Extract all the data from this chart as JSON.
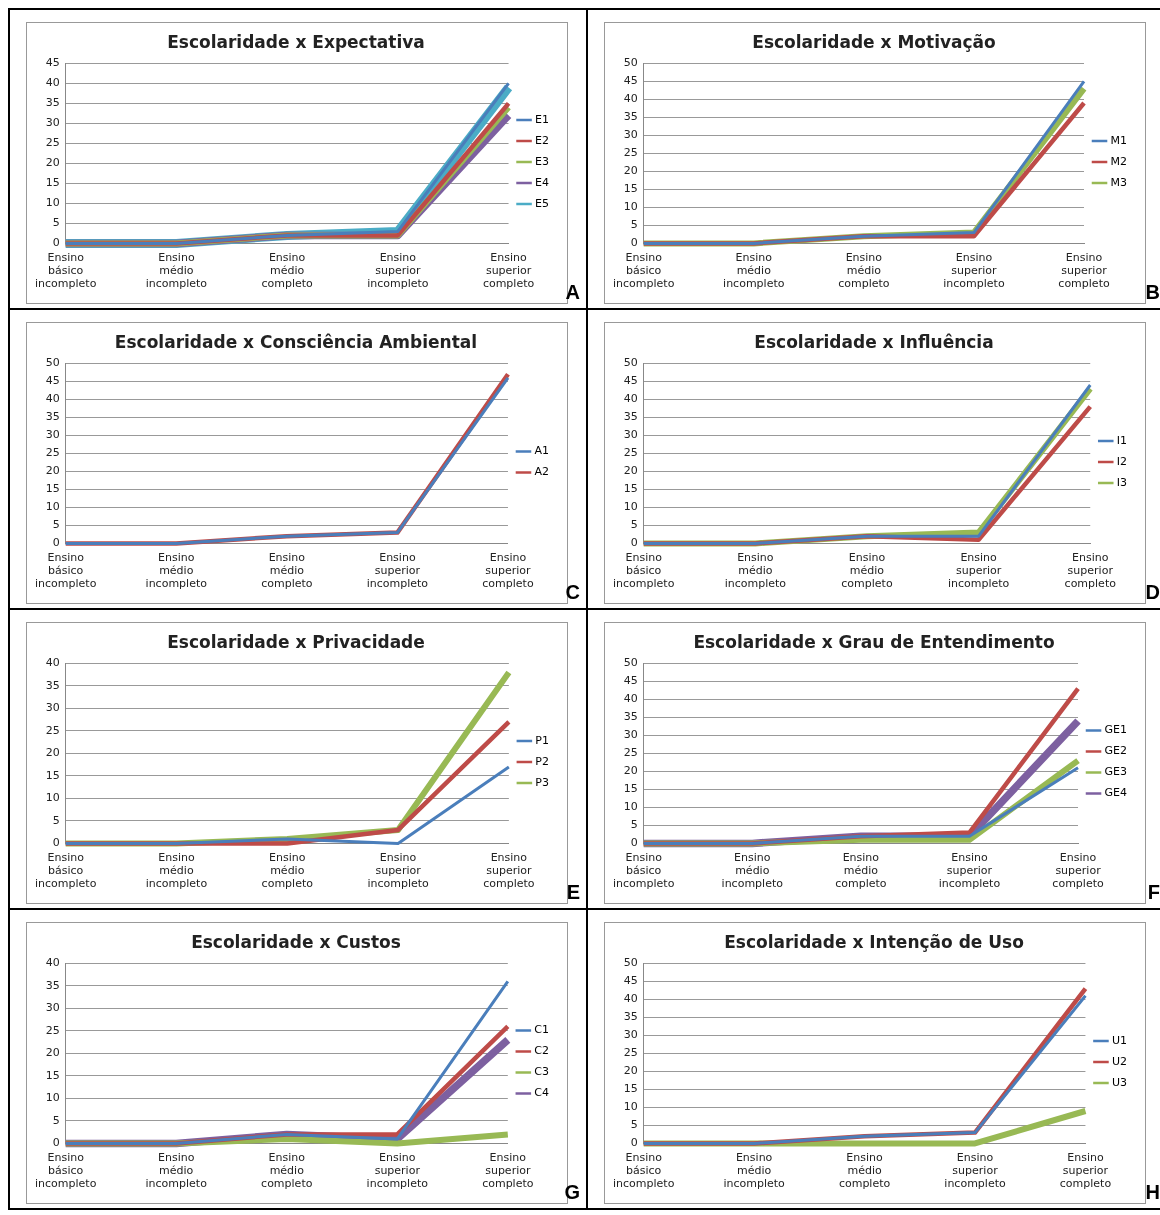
{
  "chart_data": [
    {
      "type": "line",
      "title": "Escolaridade x Expectativa",
      "categories": [
        "Ensino básico incompleto",
        "Ensino médio incompleto",
        "Ensino médio completo",
        "Ensino superior incompleto",
        "Ensino superior completo"
      ],
      "ylim": [
        0,
        45
      ],
      "yticks": [
        0,
        5,
        10,
        15,
        20,
        25,
        30,
        35,
        40,
        45
      ],
      "grid": "y",
      "legend": "right",
      "marker": "none",
      "annotations": [
        "A"
      ],
      "series": [
        {
          "name": "E1",
          "color": "#4a7ebb",
          "values": [
            0,
            0,
            2,
            3,
            40
          ]
        },
        {
          "name": "E2",
          "color": "#be4b48",
          "values": [
            0,
            0,
            2,
            2,
            35
          ]
        },
        {
          "name": "E3",
          "color": "#98b954",
          "values": [
            0,
            0,
            2,
            2,
            34
          ]
        },
        {
          "name": "E4",
          "color": "#7d60a0",
          "values": [
            0,
            0,
            2,
            2,
            32
          ]
        },
        {
          "name": "E5",
          "color": "#4bacc6",
          "values": [
            0,
            0,
            2,
            3,
            39
          ]
        }
      ]
    },
    {
      "type": "line",
      "title": "Escolaridade x Motivação",
      "categories": [
        "Ensino básico incompleto",
        "Ensino médio incompleto",
        "Ensino médio completo",
        "Ensino superior incompleto",
        "Ensino superior completo"
      ],
      "ylim": [
        0,
        50
      ],
      "yticks": [
        0,
        5,
        10,
        15,
        20,
        25,
        30,
        35,
        40,
        45,
        50
      ],
      "grid": "y",
      "legend": "right",
      "marker": "none",
      "annotations": [
        "B"
      ],
      "series": [
        {
          "name": "M1",
          "color": "#4a7ebb",
          "values": [
            0,
            0,
            2,
            3,
            45
          ]
        },
        {
          "name": "M2",
          "color": "#be4b48",
          "values": [
            0,
            0,
            2,
            2,
            39
          ]
        },
        {
          "name": "M3",
          "color": "#98b954",
          "values": [
            0,
            0,
            2,
            3,
            43
          ]
        }
      ]
    },
    {
      "type": "line",
      "title": "Escolaridade x Consciência Ambiental",
      "categories": [
        "Ensino básico incompleto",
        "Ensino médio incompleto",
        "Ensino médio completo",
        "Ensino superior incompleto",
        "Ensino superior completo"
      ],
      "ylim": [
        0,
        50
      ],
      "yticks": [
        0,
        5,
        10,
        15,
        20,
        25,
        30,
        35,
        40,
        45,
        50
      ],
      "grid": "y",
      "legend": "right",
      "marker": "none",
      "annotations": [
        "C"
      ],
      "series": [
        {
          "name": "A1",
          "color": "#4a7ebb",
          "values": [
            0,
            0,
            2,
            3,
            46
          ]
        },
        {
          "name": "A2",
          "color": "#be4b48",
          "values": [
            0,
            0,
            2,
            3,
            47
          ]
        }
      ]
    },
    {
      "type": "line",
      "title": "Escolaridade x Influência",
      "categories": [
        "Ensino básico incompleto",
        "Ensino médio incompleto",
        "Ensino médio completo",
        "Ensino superior incompleto",
        "Ensino superior completo"
      ],
      "ylim": [
        0,
        50
      ],
      "yticks": [
        0,
        5,
        10,
        15,
        20,
        25,
        30,
        35,
        40,
        45,
        50
      ],
      "grid": "y",
      "legend": "right",
      "marker": "none",
      "annotations": [
        "D"
      ],
      "series": [
        {
          "name": "I1",
          "color": "#4a7ebb",
          "values": [
            0,
            0,
            2,
            2,
            44
          ]
        },
        {
          "name": "I2",
          "color": "#be4b48",
          "values": [
            0,
            0,
            2,
            1,
            38
          ]
        },
        {
          "name": "I3",
          "color": "#98b954",
          "values": [
            0,
            0,
            2,
            3,
            43
          ]
        }
      ]
    },
    {
      "type": "line",
      "title": "Escolaridade x Privacidade",
      "categories": [
        "Ensino básico incompleto",
        "Ensino médio incompleto",
        "Ensino médio completo",
        "Ensino superior incompleto",
        "Ensino superior completo"
      ],
      "ylim": [
        0,
        40
      ],
      "yticks": [
        0,
        5,
        10,
        15,
        20,
        25,
        30,
        35,
        40
      ],
      "grid": "y",
      "legend": "right",
      "marker": "none",
      "annotations": [
        "E"
      ],
      "series": [
        {
          "name": "P1",
          "color": "#4a7ebb",
          "values": [
            0,
            0,
            1,
            0,
            17
          ]
        },
        {
          "name": "P2",
          "color": "#be4b48",
          "values": [
            0,
            0,
            0,
            3,
            27
          ]
        },
        {
          "name": "P3",
          "color": "#98b954",
          "values": [
            0,
            0,
            1,
            3,
            38
          ]
        }
      ]
    },
    {
      "type": "line",
      "title": "Escolaridade x Grau de Entendimento",
      "categories": [
        "Ensino básico incompleto",
        "Ensino médio incompleto",
        "Ensino médio completo",
        "Ensino superior incompleto",
        "Ensino superior completo"
      ],
      "ylim": [
        0,
        50
      ],
      "yticks": [
        0,
        5,
        10,
        15,
        20,
        25,
        30,
        35,
        40,
        45,
        50
      ],
      "grid": "y",
      "legend": "right",
      "marker": "none",
      "annotations": [
        "F"
      ],
      "series": [
        {
          "name": "GE1",
          "color": "#4a7ebb",
          "values": [
            0,
            0,
            2,
            2,
            21
          ]
        },
        {
          "name": "GE2",
          "color": "#be4b48",
          "values": [
            0,
            0,
            2,
            3,
            43
          ]
        },
        {
          "name": "GE3",
          "color": "#98b954",
          "values": [
            0,
            0,
            1,
            1,
            23
          ]
        },
        {
          "name": "GE4",
          "color": "#7d60a0",
          "values": [
            0,
            0,
            2,
            2,
            34
          ]
        }
      ]
    },
    {
      "type": "line",
      "title": "Escolaridade x Custos",
      "categories": [
        "Ensino básico incompleto",
        "Ensino médio incompleto",
        "Ensino médio completo",
        "Ensino superior incompleto",
        "Ensino superior completo"
      ],
      "ylim": [
        0,
        40
      ],
      "yticks": [
        0,
        5,
        10,
        15,
        20,
        25,
        30,
        35,
        40
      ],
      "grid": "y",
      "legend": "right",
      "marker": "none",
      "annotations": [
        "G"
      ],
      "series": [
        {
          "name": "C1",
          "color": "#4a7ebb",
          "values": [
            0,
            0,
            2,
            1,
            36
          ]
        },
        {
          "name": "C2",
          "color": "#be4b48",
          "values": [
            0,
            0,
            2,
            2,
            26
          ]
        },
        {
          "name": "C3",
          "color": "#98b954",
          "values": [
            0,
            0,
            1,
            0,
            2
          ]
        },
        {
          "name": "C4",
          "color": "#7d60a0",
          "values": [
            0,
            0,
            2,
            1,
            23
          ]
        }
      ]
    },
    {
      "type": "line",
      "title": "Escolaridade x Intenção de Uso",
      "categories": [
        "Ensino básico incompleto",
        "Ensino médio incompleto",
        "Ensino médio completo",
        "Ensino superior incompleto",
        "Ensino superior completo"
      ],
      "ylim": [
        0,
        50
      ],
      "yticks": [
        0,
        5,
        10,
        15,
        20,
        25,
        30,
        35,
        40,
        45,
        50
      ],
      "grid": "y",
      "legend": "right",
      "marker": "none",
      "annotations": [
        "H"
      ],
      "series": [
        {
          "name": "U1",
          "color": "#4a7ebb",
          "values": [
            0,
            0,
            2,
            3,
            41
          ]
        },
        {
          "name": "U2",
          "color": "#be4b48",
          "values": [
            0,
            0,
            2,
            3,
            43
          ]
        },
        {
          "name": "U3",
          "color": "#98b954",
          "values": [
            0,
            0,
            0,
            0,
            9
          ]
        }
      ]
    }
  ]
}
